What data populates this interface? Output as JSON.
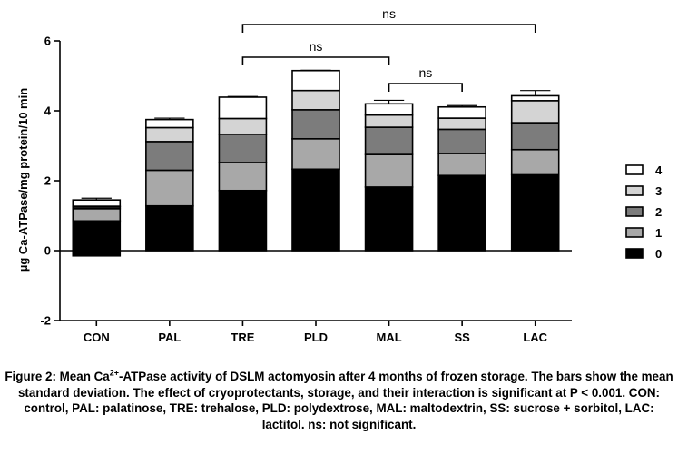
{
  "chart_data": {
    "type": "bar",
    "stacked": true,
    "categories": [
      "CON",
      "PAL",
      "TRE",
      "PLD",
      "MAL",
      "SS",
      "LAC"
    ],
    "ylabel": "µg Ca-ATPase/mg protein/10 min",
    "ylim": [
      -2,
      6
    ],
    "yticks": [
      "-2",
      "0",
      "2",
      "4",
      "6"
    ],
    "legend_position": "right",
    "series": [
      {
        "name": "0",
        "color": "#000000",
        "values": [
          0.85,
          1.28,
          1.72,
          2.33,
          1.82,
          2.15,
          2.17
        ],
        "errors": [
          0,
          0.16,
          0.13,
          0.05,
          0.1,
          0,
          0.07
        ]
      },
      {
        "name": "1",
        "color": "#a8a8a8",
        "values": [
          0.35,
          1.02,
          0.8,
          0.87,
          0.93,
          0.63,
          0.72
        ],
        "errors": [
          0,
          0,
          0.07,
          0.04,
          0.05,
          0.06,
          0.05
        ]
      },
      {
        "name": "2",
        "color": "#7c7c7c",
        "values": [
          0.05,
          0.82,
          0.81,
          0.83,
          0.78,
          0.69,
          0.77
        ],
        "errors": [
          0.05,
          0.03,
          0.04,
          0.03,
          0.02,
          0.04,
          0.03
        ]
      },
      {
        "name": "3",
        "color": "#d4d4d4",
        "values": [
          0.02,
          0.4,
          0.45,
          0.55,
          0.35,
          0.32,
          0.63
        ],
        "errors": [
          0.04,
          0.05,
          0.04,
          0.04,
          0.05,
          0.04,
          0.06
        ]
      },
      {
        "name": "4",
        "color": "#ffffff",
        "values": [
          0.18,
          0.23,
          0.61,
          0.57,
          0.32,
          0.32,
          0.14
        ],
        "errors": [
          0.05,
          0.04,
          0.02,
          0.01,
          0.1,
          0.04,
          0.15
        ]
      }
    ],
    "negative_values": {
      "CON": -0.15
    },
    "significance": [
      {
        "from": "TRE",
        "to": "LAC",
        "label": "ns"
      },
      {
        "from": "TRE",
        "to": "MAL",
        "label": "ns"
      },
      {
        "from": "MAL",
        "to": "SS",
        "label": "ns"
      }
    ]
  },
  "caption": {
    "pre": "Figure 2: Mean Ca",
    "sup": "2+",
    "post": "-ATPase activity of DSLM actomyosin after 4 months of frozen storage. The bars show the mean standard deviation. The effect of cryoprotectants, storage, and their interaction is significant at P < 0.001.  CON: control, PAL: palatinose, TRE: trehalose, PLD: polydextrose, MAL: maltodextrin, SS: sucrose + sorbitol, LAC: lactitol. ns: not significant."
  }
}
